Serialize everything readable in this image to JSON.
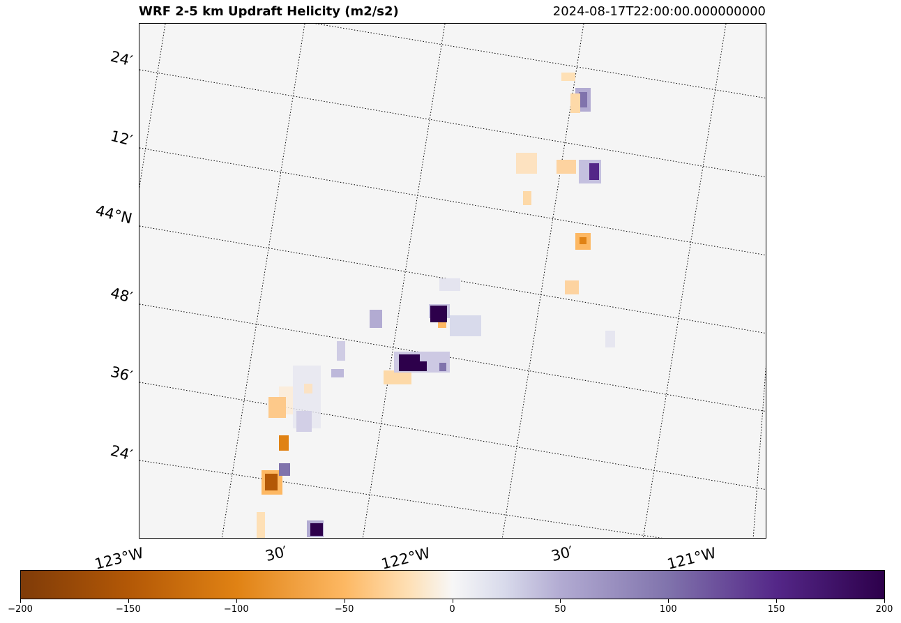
{
  "title": {
    "left": "WRF 2-5 km Updraft Helicity (m2/s2)",
    "right": "2024-08-17T22:00:00.000000000"
  },
  "map": {
    "background_color": "#f5f5f5",
    "gridline_style": "dotted",
    "lat_labels": [
      "24′",
      "12′",
      "44°N",
      "48′",
      "36′",
      "24′"
    ],
    "lon_labels": [
      "123°W",
      "30′",
      "122°W",
      "30′",
      "121°W"
    ]
  },
  "colorbar": {
    "min": -200,
    "max": 200,
    "cmap": "PuOr",
    "colors": [
      "#7f3b08",
      "#b35806",
      "#e08214",
      "#fdb863",
      "#fee0b6",
      "#f7f7f7",
      "#d8daeb",
      "#b2abd2",
      "#8073ac",
      "#542788",
      "#2d004b"
    ],
    "tick_values": [
      -200,
      -150,
      -100,
      -50,
      0,
      50,
      100,
      150,
      200
    ],
    "tick_labels": [
      "−200",
      "−150",
      "−100",
      "−50",
      "0",
      "50",
      "100",
      "150",
      "200"
    ]
  }
}
